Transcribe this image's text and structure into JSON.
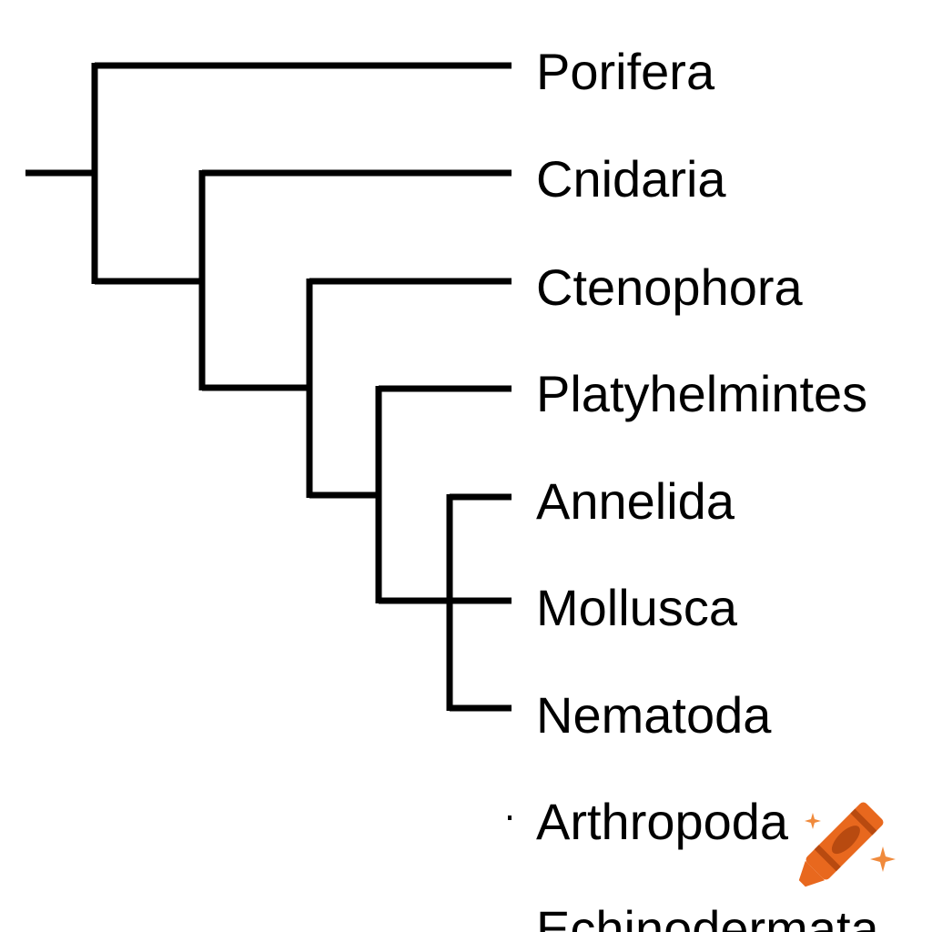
{
  "tree": {
    "taxa": [
      "Porifera",
      "Cnidaria",
      "Ctenophora",
      "Platyhelmintes",
      "Annelida",
      "Mollusca",
      "Nematoda",
      "Arthropoda",
      "Echinodermata"
    ]
  },
  "watermark": {
    "icon": "crayon-icon",
    "colors": {
      "body": "#e8681e",
      "dark": "#b84a10",
      "accent": "#f08a3c"
    }
  }
}
